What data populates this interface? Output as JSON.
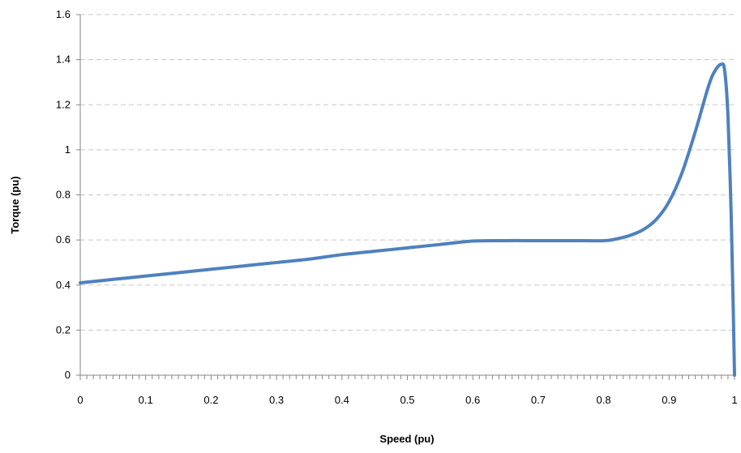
{
  "chart_data": {
    "type": "line",
    "title": "",
    "xlabel": "Speed (pu)",
    "ylabel": "Torque (pu)",
    "xlim": [
      0,
      1
    ],
    "ylim": [
      0,
      1.6
    ],
    "x_ticks": [
      "0",
      "0.1",
      "0.2",
      "0.3",
      "0.4",
      "0.5",
      "0.6",
      "0.7",
      "0.8",
      "0.9",
      "1"
    ],
    "y_ticks": [
      "0",
      "0.2",
      "0.4",
      "0.6",
      "0.8",
      "1",
      "1.2",
      "1.4",
      "1.6"
    ],
    "grid": "horizontal dashed",
    "legend": "none",
    "line_color": "#4F81BD",
    "series": [
      {
        "x": [
          0,
          0.05,
          0.1,
          0.15,
          0.2,
          0.25,
          0.3,
          0.35,
          0.4,
          0.45,
          0.5,
          0.55,
          0.6,
          0.65,
          0.7,
          0.75,
          0.8,
          0.82,
          0.84,
          0.86,
          0.88,
          0.9,
          0.92,
          0.94,
          0.96,
          0.97,
          0.98,
          0.985,
          0.99,
          0.995,
          0.998,
          1.0
        ],
        "y": [
          0.41,
          0.425,
          0.44,
          0.455,
          0.47,
          0.485,
          0.5,
          0.515,
          0.535,
          0.55,
          0.565,
          0.58,
          0.595,
          0.597,
          0.597,
          0.597,
          0.597,
          0.605,
          0.62,
          0.645,
          0.69,
          0.77,
          0.9,
          1.08,
          1.28,
          1.35,
          1.38,
          1.35,
          1.15,
          0.7,
          0.3,
          0
        ]
      }
    ]
  }
}
